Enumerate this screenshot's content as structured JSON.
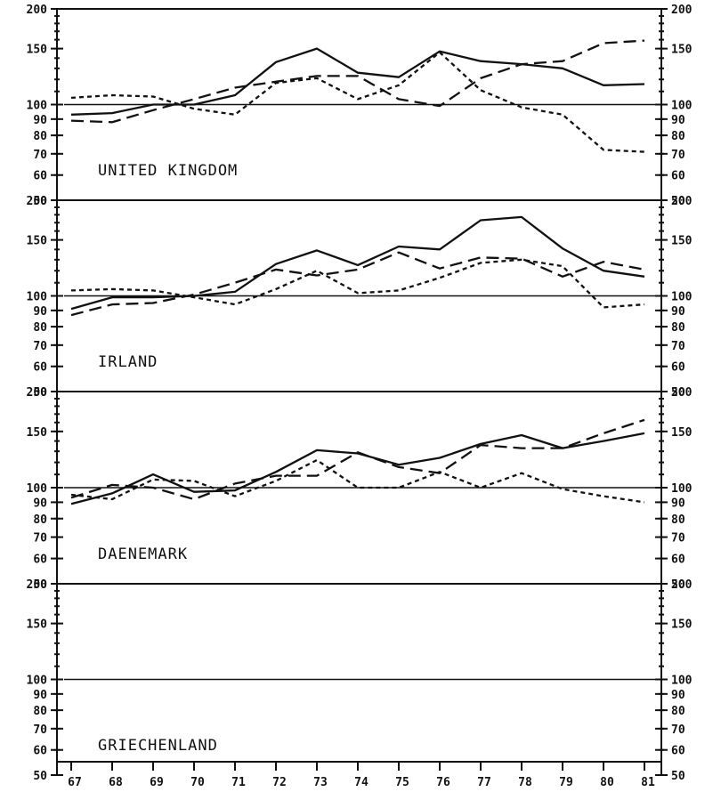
{
  "chart_data": [
    {
      "type": "line",
      "panel_label": "UNITED KINGDOM",
      "x": [
        "67",
        "68",
        "69",
        "70",
        "71",
        "72",
        "73",
        "74",
        "75",
        "76",
        "77",
        "78",
        "79",
        "80",
        "81"
      ],
      "yscale": "log",
      "ylim": [
        50,
        200
      ],
      "yticks": [
        50,
        60,
        70,
        80,
        90,
        100,
        150,
        200
      ],
      "reference_line": 100,
      "series": [
        {
          "style": "solid",
          "values": [
            93,
            94,
            100,
            100,
            107,
            136,
            150,
            126,
            122,
            147,
            137,
            134,
            130,
            115,
            116
          ]
        },
        {
          "style": "long-dash",
          "values": [
            89,
            88,
            96,
            104,
            113,
            118,
            123,
            123,
            104,
            99,
            121,
            134,
            137,
            156,
            159
          ]
        },
        {
          "style": "short-dash",
          "values": [
            105,
            107,
            106,
            97,
            93,
            117,
            121,
            104,
            115,
            146,
            111,
            98,
            93,
            72,
            71
          ]
        }
      ]
    },
    {
      "type": "line",
      "panel_label": "IRLAND",
      "x": [
        "67",
        "68",
        "69",
        "70",
        "71",
        "72",
        "73",
        "74",
        "75",
        "76",
        "77",
        "78",
        "79",
        "80",
        "81"
      ],
      "yscale": "log",
      "ylim": [
        50,
        200
      ],
      "yticks": [
        50,
        60,
        70,
        80,
        90,
        100,
        150,
        200
      ],
      "reference_line": 100,
      "series": [
        {
          "style": "solid",
          "values": [
            91,
            99,
            99,
            100,
            103,
            126,
            139,
            125,
            143,
            140,
            173,
            177,
            141,
            120,
            115
          ]
        },
        {
          "style": "long-dash",
          "values": [
            87,
            94,
            95,
            101,
            110,
            121,
            116,
            121,
            137,
            122,
            132,
            131,
            115,
            128,
            121
          ]
        },
        {
          "style": "short-dash",
          "values": [
            104,
            105,
            104,
            99,
            94,
            105,
            120,
            102,
            104,
            114,
            127,
            130,
            124,
            92,
            94
          ]
        }
      ]
    },
    {
      "type": "line",
      "panel_label": "DAENEMARK",
      "x": [
        "67",
        "68",
        "69",
        "70",
        "71",
        "72",
        "73",
        "74",
        "75",
        "76",
        "77",
        "78",
        "79",
        "80",
        "81"
      ],
      "yscale": "log",
      "ylim": [
        50,
        200
      ],
      "yticks": [
        50,
        60,
        70,
        80,
        90,
        100,
        150,
        200
      ],
      "reference_line": 100,
      "series": [
        {
          "style": "solid",
          "values": [
            89,
            96,
            110,
            97,
            98,
            112,
            131,
            128,
            118,
            124,
            137,
            146,
            133,
            140,
            148
          ]
        },
        {
          "style": "long-dash",
          "values": [
            93,
            102,
            100,
            92,
            103,
            109,
            109,
            129,
            116,
            111,
            136,
            133,
            133,
            148,
            163
          ]
        },
        {
          "style": "short-dash",
          "values": [
            95,
            92,
            106,
            105,
            94,
            105,
            122,
            100,
            100,
            112,
            100,
            111,
            99,
            94,
            90
          ]
        }
      ]
    },
    {
      "type": "line",
      "panel_label": "GRIECHENLAND",
      "x": [
        "67",
        "68",
        "69",
        "70",
        "71",
        "72",
        "73",
        "74",
        "75",
        "76",
        "77",
        "78",
        "79",
        "80",
        "81"
      ],
      "yscale": "log",
      "ylim": [
        50,
        200
      ],
      "yticks": [
        50,
        60,
        70,
        80,
        90,
        100,
        150,
        200
      ],
      "reference_line": 100,
      "series": []
    }
  ]
}
